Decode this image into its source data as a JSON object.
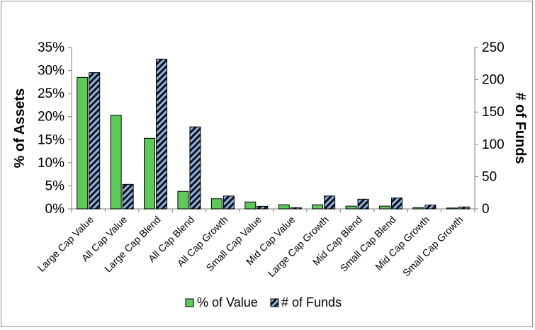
{
  "chart_data": {
    "type": "bar",
    "categories": [
      "Large Cap Value",
      "All Cap Value",
      "Large Cap Blend",
      "All Cap Blend",
      "All Cap Growth",
      "Small Cap Value",
      "Mid Cap Value",
      "Large Cap Growth",
      "Mid Cap Blend",
      "Small Cap Blend",
      "Mid Cap Growth",
      "Small Cap Growth"
    ],
    "series": [
      {
        "name": "% of Value",
        "axis": "left",
        "color": "#5ec85a",
        "values": [
          28.5,
          20.3,
          15.3,
          3.8,
          2.2,
          1.5,
          0.9,
          0.9,
          0.6,
          0.6,
          0.3,
          0.2
        ]
      },
      {
        "name": "# of Funds",
        "axis": "right",
        "color": "#8cb4e6",
        "pattern": "black-diagonal-stripes",
        "values": [
          211,
          38,
          232,
          127,
          20,
          4,
          2,
          20,
          15,
          17,
          6,
          3
        ]
      }
    ],
    "ylabel": "% of Assets",
    "y2label": "# of Funds",
    "ylim": [
      0,
      35
    ],
    "y2lim": [
      0,
      250
    ],
    "yticks": [
      "0%",
      "5%",
      "10%",
      "15%",
      "20%",
      "25%",
      "30%",
      "35%"
    ],
    "y2ticks": [
      "0",
      "50",
      "100",
      "150",
      "200",
      "250"
    ],
    "grid": false,
    "legend": "bottom-center"
  }
}
